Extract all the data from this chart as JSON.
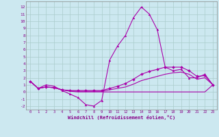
{
  "xlabel": "Windchill (Refroidissement éolien,°C)",
  "background_color": "#cce8f0",
  "grid_color": "#aacccc",
  "line_color": "#aa00aa",
  "x_ticks": [
    0,
    1,
    2,
    3,
    4,
    5,
    6,
    7,
    8,
    9,
    10,
    11,
    12,
    13,
    14,
    15,
    16,
    17,
    18,
    19,
    20,
    21,
    22,
    23
  ],
  "y_ticks": [
    -2,
    -1,
    0,
    1,
    2,
    3,
    4,
    5,
    6,
    7,
    8,
    9,
    10,
    11,
    12
  ],
  "ylim": [
    -2.5,
    12.8
  ],
  "xlim": [
    -0.5,
    23.5
  ],
  "series1_x": [
    0,
    1,
    2,
    3,
    4,
    5,
    6,
    7,
    8,
    9,
    10,
    11,
    12,
    13,
    14,
    15,
    16,
    17,
    18,
    19,
    20,
    21,
    22,
    23
  ],
  "series1_y": [
    1.5,
    0.5,
    1.0,
    0.8,
    0.2,
    -0.3,
    -0.8,
    -1.8,
    -2.0,
    -1.2,
    4.5,
    6.5,
    8.0,
    10.5,
    12.0,
    11.0,
    8.8,
    3.5,
    3.0,
    3.2,
    2.0,
    2.0,
    2.5,
    1.0
  ],
  "series2_x": [
    0,
    1,
    2,
    3,
    4,
    5,
    6,
    7,
    8,
    9,
    10,
    11,
    12,
    13,
    14,
    15,
    16,
    17,
    18,
    19,
    20,
    21,
    22,
    23
  ],
  "series2_y": [
    1.5,
    0.5,
    0.7,
    0.6,
    0.3,
    0.2,
    0.2,
    0.2,
    0.2,
    0.2,
    0.5,
    0.8,
    1.2,
    1.8,
    2.5,
    2.9,
    3.2,
    3.5,
    3.5,
    3.5,
    3.0,
    2.2,
    2.3,
    1.0
  ],
  "series3_x": [
    0,
    1,
    2,
    3,
    4,
    5,
    6,
    7,
    8,
    9,
    10,
    11,
    12,
    13,
    14,
    15,
    16,
    17,
    18,
    19,
    20,
    21,
    22,
    23
  ],
  "series3_y": [
    1.5,
    0.5,
    0.7,
    0.6,
    0.3,
    0.15,
    0.1,
    0.1,
    0.1,
    0.1,
    0.3,
    0.5,
    0.7,
    1.1,
    1.6,
    1.9,
    2.2,
    2.5,
    2.7,
    2.8,
    2.5,
    1.8,
    2.0,
    1.0
  ],
  "series4_x": [
    0,
    1,
    2,
    3,
    4,
    5,
    6,
    7,
    8,
    9,
    10,
    11,
    12,
    13,
    14,
    15,
    16,
    17,
    18,
    19,
    20,
    21,
    22,
    23
  ],
  "series4_y": [
    1.5,
    0.5,
    0.7,
    0.6,
    0.3,
    0.1,
    0.0,
    0.0,
    0.0,
    0.0,
    0.0,
    0.0,
    0.0,
    0.0,
    0.0,
    0.0,
    0.0,
    0.0,
    0.0,
    0.0,
    0.0,
    0.0,
    0.0,
    1.0
  ],
  "marker1": "^",
  "marker2": "D"
}
